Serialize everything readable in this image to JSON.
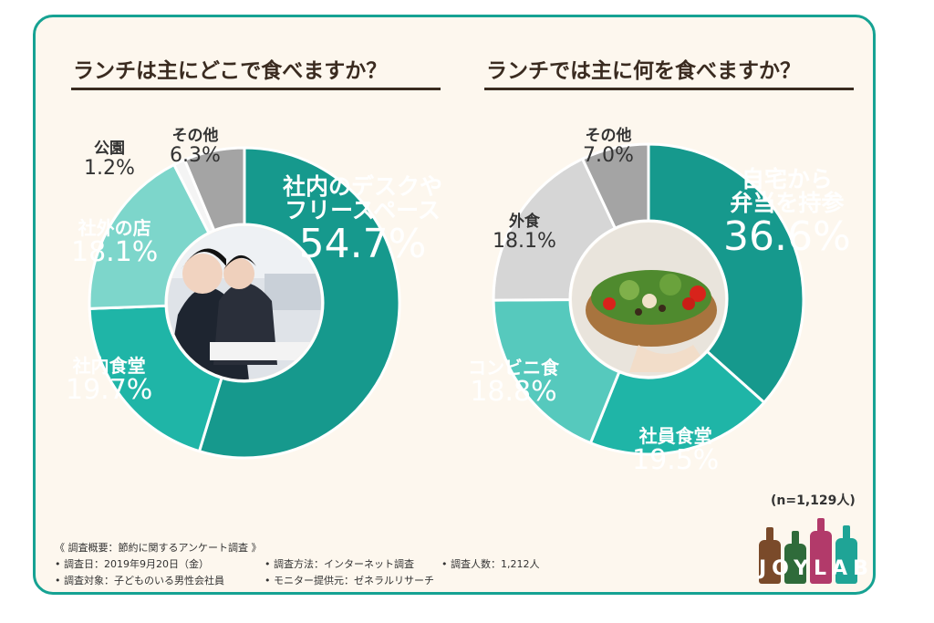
{
  "left": {
    "title": "ランチは主にどこで食べますか？",
    "chart_data": {
      "type": "pie",
      "donut": true,
      "categories": [
        "社内のデスクやフリースペース",
        "社内食堂",
        "社外の店",
        "公園",
        "その他"
      ],
      "values": [
        54.7,
        19.7,
        18.1,
        1.2,
        6.3
      ],
      "colors": [
        "#16998d",
        "#1fb5a7",
        "#7dd6cb",
        "#f4f4f4",
        "#a4a4a4"
      ]
    },
    "labels": {
      "desk_line1": "社内のデスクや",
      "desk_line2": "フリースペース",
      "desk_value": "54.7%",
      "cafeteria_name": "社内食堂",
      "cafeteria_value": "19.7%",
      "outside_name": "社外の店",
      "outside_value": "18.1%",
      "park_name": "公園",
      "park_value": "1.2%",
      "other_name": "その他",
      "other_value": "6.3%"
    }
  },
  "right": {
    "title": "ランチでは主に何を食べますか？",
    "chart_data": {
      "type": "pie",
      "donut": true,
      "categories": [
        "自宅から弁当を持参",
        "社員食堂",
        "コンビニ食",
        "外食",
        "その他"
      ],
      "values": [
        36.6,
        19.5,
        18.8,
        18.1,
        7.0
      ],
      "colors": [
        "#16998d",
        "#1fb5a7",
        "#56c9bd",
        "#d6d6d6",
        "#a4a4a4"
      ]
    },
    "labels": {
      "bento_line1": "自宅から",
      "bento_line2": "弁当を持参",
      "bento_value": "36.6%",
      "staff_name": "社員食堂",
      "staff_value": "19.5%",
      "conv_name": "コンビニ食",
      "conv_value": "18.8%",
      "eatout_name": "外食",
      "eatout_value": "18.1%",
      "other_name": "その他",
      "other_value": "7.0%"
    }
  },
  "sample_size": "(n=1,129人)",
  "footer": {
    "line1": "《 調査概要：節約に関するアンケート調査 》",
    "date": "• 調査日：2019年9月20日（金）",
    "method": "• 調査方法：インターネット調査",
    "count": "• 調査人数：1,212人",
    "target": "• 調査対象：子どものいる男性会社員",
    "provider": "• モニター提供元：ゼネラルリサーチ"
  },
  "logo_text": "JOYLAB"
}
